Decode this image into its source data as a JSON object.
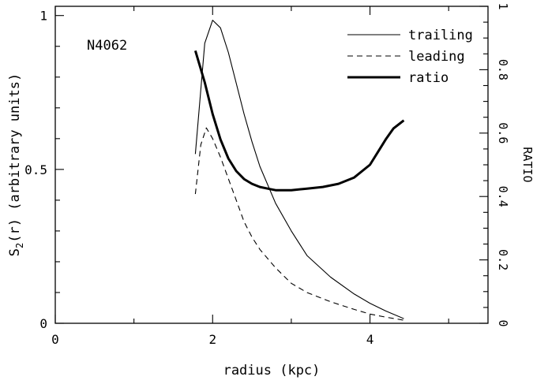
{
  "chart_data": {
    "type": "line",
    "annotation": "N4062",
    "xlabel": "radius (kpc)",
    "ylabel_main": "S",
    "ylabel_sub": "2",
    "ylabel_rest": "(r) (arbitrary units)",
    "y2label": "RATIO",
    "xlim": [
      0,
      5.5
    ],
    "ylim": [
      0,
      1.03
    ],
    "y2lim": [
      0,
      1.0
    ],
    "x_ticks": [
      "0",
      "2",
      "4"
    ],
    "y_ticks": [
      "0",
      "0.5",
      "1"
    ],
    "y2_ticks": [
      "0",
      "0.2",
      "0.4",
      "0.6",
      "0.8",
      "1"
    ],
    "grid": false,
    "legend_position": "top-right",
    "series": [
      {
        "name": "trailing",
        "axis": "left",
        "style": "solid-thin",
        "x": [
          1.78,
          1.9,
          2.0,
          2.1,
          2.2,
          2.3,
          2.4,
          2.5,
          2.6,
          2.8,
          3.0,
          3.2,
          3.5,
          3.8,
          4.0,
          4.2,
          4.43
        ],
        "y": [
          0.55,
          0.91,
          0.985,
          0.96,
          0.88,
          0.78,
          0.68,
          0.59,
          0.51,
          0.39,
          0.3,
          0.22,
          0.15,
          0.095,
          0.065,
          0.04,
          0.015
        ]
      },
      {
        "name": "leading",
        "axis": "left",
        "style": "dashed",
        "x": [
          1.78,
          1.85,
          1.92,
          2.0,
          2.1,
          2.2,
          2.3,
          2.4,
          2.5,
          2.6,
          2.8,
          3.0,
          3.2,
          3.5,
          3.8,
          4.0,
          4.2,
          4.43
        ],
        "y": [
          0.42,
          0.58,
          0.635,
          0.6,
          0.54,
          0.47,
          0.4,
          0.33,
          0.28,
          0.24,
          0.18,
          0.13,
          0.1,
          0.07,
          0.045,
          0.03,
          0.02,
          0.01
        ]
      },
      {
        "name": "ratio",
        "axis": "right",
        "style": "solid-thick",
        "x": [
          1.78,
          1.9,
          2.0,
          2.1,
          2.2,
          2.3,
          2.4,
          2.5,
          2.6,
          2.7,
          2.8,
          3.0,
          3.2,
          3.4,
          3.6,
          3.8,
          4.0,
          4.1,
          4.2,
          4.3,
          4.43
        ],
        "y": [
          0.86,
          0.76,
          0.66,
          0.58,
          0.52,
          0.48,
          0.455,
          0.44,
          0.43,
          0.425,
          0.42,
          0.42,
          0.425,
          0.43,
          0.44,
          0.46,
          0.5,
          0.54,
          0.58,
          0.615,
          0.64
        ]
      }
    ]
  }
}
